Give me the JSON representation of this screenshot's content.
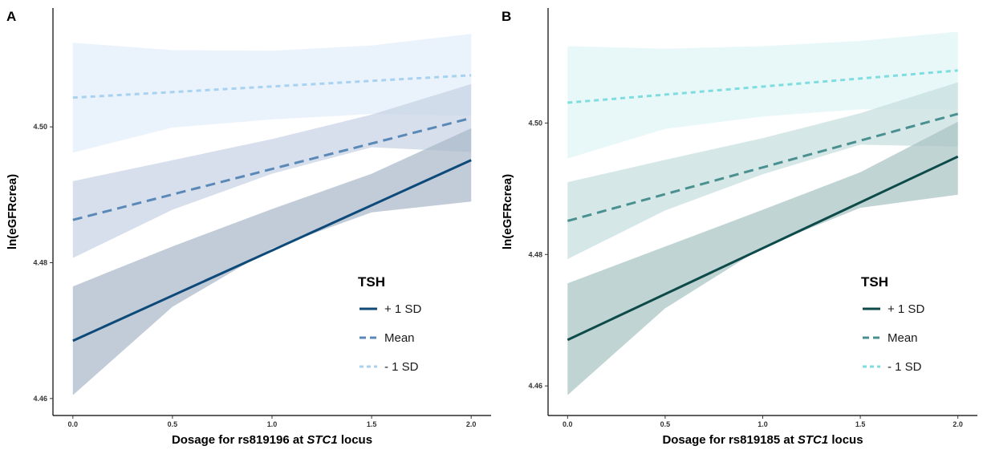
{
  "chart_data": [
    {
      "panel_label": "A",
      "type": "line",
      "xlabel_parts": [
        "Dosage for rs819196 at ",
        "STC1",
        " locus"
      ],
      "ylabel": "ln(eGFRcrea)",
      "xlim": [
        -0.1,
        2.1
      ],
      "ylim": [
        4.4575,
        4.5175
      ],
      "xticks": [
        0.0,
        0.5,
        1.0,
        1.5,
        2.0
      ],
      "xtick_labels": [
        "0.0",
        "0.5",
        "1.0",
        "1.5",
        "2.0"
      ],
      "yticks": [
        4.46,
        4.48,
        4.5
      ],
      "ytick_labels": [
        "4.46",
        "4.48",
        "4.50"
      ],
      "grid": false,
      "legend_title": "TSH",
      "legend_position": "right",
      "series": [
        {
          "name": "+ 1 SD",
          "color": "#0d4a7a",
          "dash": "solid",
          "line": [
            [
              0.0,
              4.4685
            ],
            [
              2.0,
              4.4951
            ]
          ],
          "band_upper": [
            [
              0.0,
              4.4765
            ],
            [
              0.5,
              4.4824
            ],
            [
              1.0,
              4.4879
            ],
            [
              1.5,
              4.4931
            ],
            [
              2.0,
              4.4998
            ]
          ],
          "band_lower": [
            [
              0.0,
              4.4605
            ],
            [
              0.5,
              4.4735
            ],
            [
              1.0,
              4.4821
            ],
            [
              1.5,
              4.4874
            ],
            [
              2.0,
              4.489
            ]
          ],
          "band_fill": "#a9b9c9"
        },
        {
          "name": "Mean",
          "color": "#5a89b8",
          "dash": "long",
          "line": [
            [
              0.0,
              4.4863
            ],
            [
              2.0,
              4.5013
            ]
          ],
          "band_upper": [
            [
              0.0,
              4.492
            ],
            [
              0.5,
              4.4951
            ],
            [
              1.0,
              4.4982
            ],
            [
              1.5,
              4.5018
            ],
            [
              2.0,
              4.5063
            ]
          ],
          "band_lower": [
            [
              0.0,
              4.4807
            ],
            [
              0.5,
              4.4878
            ],
            [
              1.0,
              4.4931
            ],
            [
              1.5,
              4.497
            ],
            [
              2.0,
              4.4963
            ]
          ],
          "band_fill": "#c7d2e4"
        },
        {
          "name": "- 1 SD",
          "color": "#a8d2f0",
          "dash": "short",
          "line": [
            [
              0.0,
              4.5043
            ],
            [
              2.0,
              4.5076
            ]
          ],
          "band_upper": [
            [
              0.0,
              4.5124
            ],
            [
              0.5,
              4.5113
            ],
            [
              1.0,
              4.5112
            ],
            [
              1.5,
              4.512
            ],
            [
              2.0,
              4.5137
            ]
          ],
          "band_lower": [
            [
              0.0,
              4.4962
            ],
            [
              0.5,
              4.4999
            ],
            [
              1.0,
              4.5011
            ],
            [
              1.5,
              4.5019
            ],
            [
              2.0,
              4.5016
            ]
          ],
          "band_fill": "#e2eff9"
        }
      ]
    },
    {
      "panel_label": "B",
      "type": "line",
      "xlabel_parts": [
        "Dosage for rs819185 at ",
        "STC1",
        " locus"
      ],
      "ylabel": "ln(eGFRcrea)",
      "xlim": [
        -0.1,
        2.1
      ],
      "ylim": [
        4.4555,
        4.5175
      ],
      "xticks": [
        0.0,
        0.5,
        1.0,
        1.5,
        2.0
      ],
      "xtick_labels": [
        "0.0",
        "0.5",
        "1.0",
        "1.5",
        "2.0"
      ],
      "yticks": [
        4.46,
        4.48,
        4.5
      ],
      "ytick_labels": [
        "4.46",
        "4.48",
        "4.50"
      ],
      "grid": false,
      "legend_title": "TSH",
      "legend_position": "right",
      "series": [
        {
          "name": "+ 1 SD",
          "color": "#0d4a4a",
          "dash": "solid",
          "line": [
            [
              0.0,
              4.467
            ],
            [
              2.0,
              4.4949
            ]
          ],
          "band_upper": [
            [
              0.0,
              4.4756
            ],
            [
              0.5,
              4.4812
            ],
            [
              1.0,
              4.4868
            ],
            [
              1.5,
              4.4925
            ],
            [
              2.0,
              4.5002
            ]
          ],
          "band_lower": [
            [
              0.0,
              4.4586
            ],
            [
              0.5,
              4.4718
            ],
            [
              1.0,
              4.4811
            ],
            [
              1.5,
              4.4871
            ],
            [
              2.0,
              4.4891
            ]
          ],
          "band_fill": "#a9c4c4"
        },
        {
          "name": "Mean",
          "color": "#4a9090",
          "dash": "long",
          "line": [
            [
              0.0,
              4.4851
            ],
            [
              2.0,
              4.5014
            ]
          ],
          "band_upper": [
            [
              0.0,
              4.491
            ],
            [
              0.5,
              4.4944
            ],
            [
              1.0,
              4.4977
            ],
            [
              1.5,
              4.5015
            ],
            [
              2.0,
              4.5062
            ]
          ],
          "band_lower": [
            [
              0.0,
              4.4793
            ],
            [
              0.5,
              4.4867
            ],
            [
              1.0,
              4.4922
            ],
            [
              1.5,
              4.4967
            ],
            [
              2.0,
              4.4964
            ]
          ],
          "band_fill": "#c6dede"
        },
        {
          "name": "- 1 SD",
          "color": "#7fdde0",
          "dash": "short",
          "line": [
            [
              0.0,
              4.5031
            ],
            [
              2.0,
              4.508
            ]
          ],
          "band_upper": [
            [
              0.0,
              4.5117
            ],
            [
              0.5,
              4.5113
            ],
            [
              1.0,
              4.5117
            ],
            [
              1.5,
              4.5125
            ],
            [
              2.0,
              4.5139
            ]
          ],
          "band_lower": [
            [
              0.0,
              4.4946
            ],
            [
              0.5,
              4.4991
            ],
            [
              1.0,
              4.501
            ],
            [
              1.5,
              4.5021
            ],
            [
              2.0,
              4.5021
            ]
          ],
          "band_fill": "#dff5f5"
        }
      ]
    }
  ]
}
